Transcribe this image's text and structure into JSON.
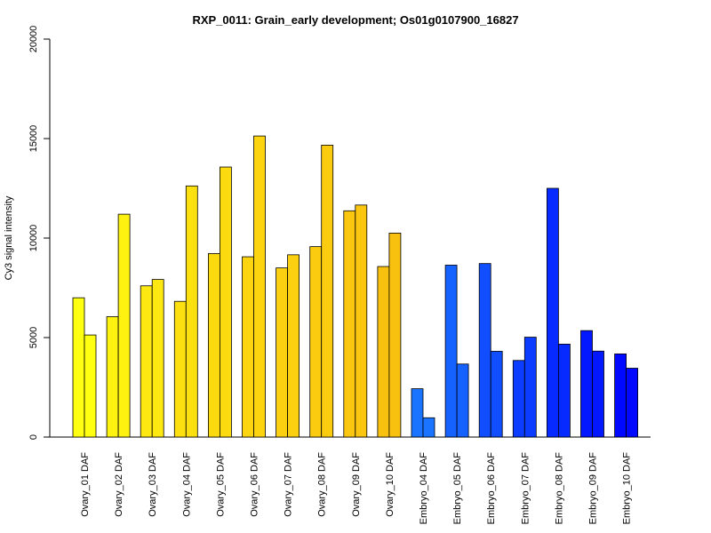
{
  "chart_data": {
    "type": "bar",
    "title": "RXP_0011: Grain_early development; Os01g0107900_16827",
    "xlabel": "",
    "ylabel": "Cy3 signal intensity",
    "ylim": [
      0,
      20000
    ],
    "yticks": [
      0,
      5000,
      10000,
      15000,
      20000
    ],
    "grid": false,
    "legend": "none",
    "categories": [
      "Ovary_01 DAF",
      "Ovary_02 DAF",
      "Ovary_03 DAF",
      "Ovary_04 DAF",
      "Ovary_05 DAF",
      "Ovary_06 DAF",
      "Ovary_07 DAF",
      "Ovary_08 DAF",
      "Ovary_09 DAF",
      "Ovary_10 DAF",
      "Embryo_04 DAF",
      "Embryo_05 DAF",
      "Embryo_06 DAF",
      "Embryo_07 DAF",
      "Embryo_08 DAF",
      "Embryo_09 DAF",
      "Embryo_10 DAF"
    ],
    "series": [
      {
        "values": [
          7000,
          6050,
          7600,
          6820,
          9220,
          9060,
          8500,
          9570,
          11370,
          8570,
          2430,
          8640,
          8720,
          3850,
          12500,
          5350,
          4180
        ]
      },
      {
        "values": [
          5130,
          11200,
          7920,
          12620,
          13570,
          15130,
          9160,
          14670,
          11660,
          10250,
          970,
          3670,
          4310,
          5020,
          4670,
          4320,
          3460
        ]
      }
    ],
    "colors": [
      "#FFFF11",
      "#FEF211",
      "#FEE811",
      "#FDE010",
      "#FCDA10",
      "#FCD510",
      "#FBD010",
      "#FBCB0F",
      "#FAC60F",
      "#F9C10F",
      "#1A74FF",
      "#1562FF",
      "#104EFF",
      "#0B3CFF",
      "#062AFF",
      "#0318FF",
      "#0008FF"
    ]
  }
}
